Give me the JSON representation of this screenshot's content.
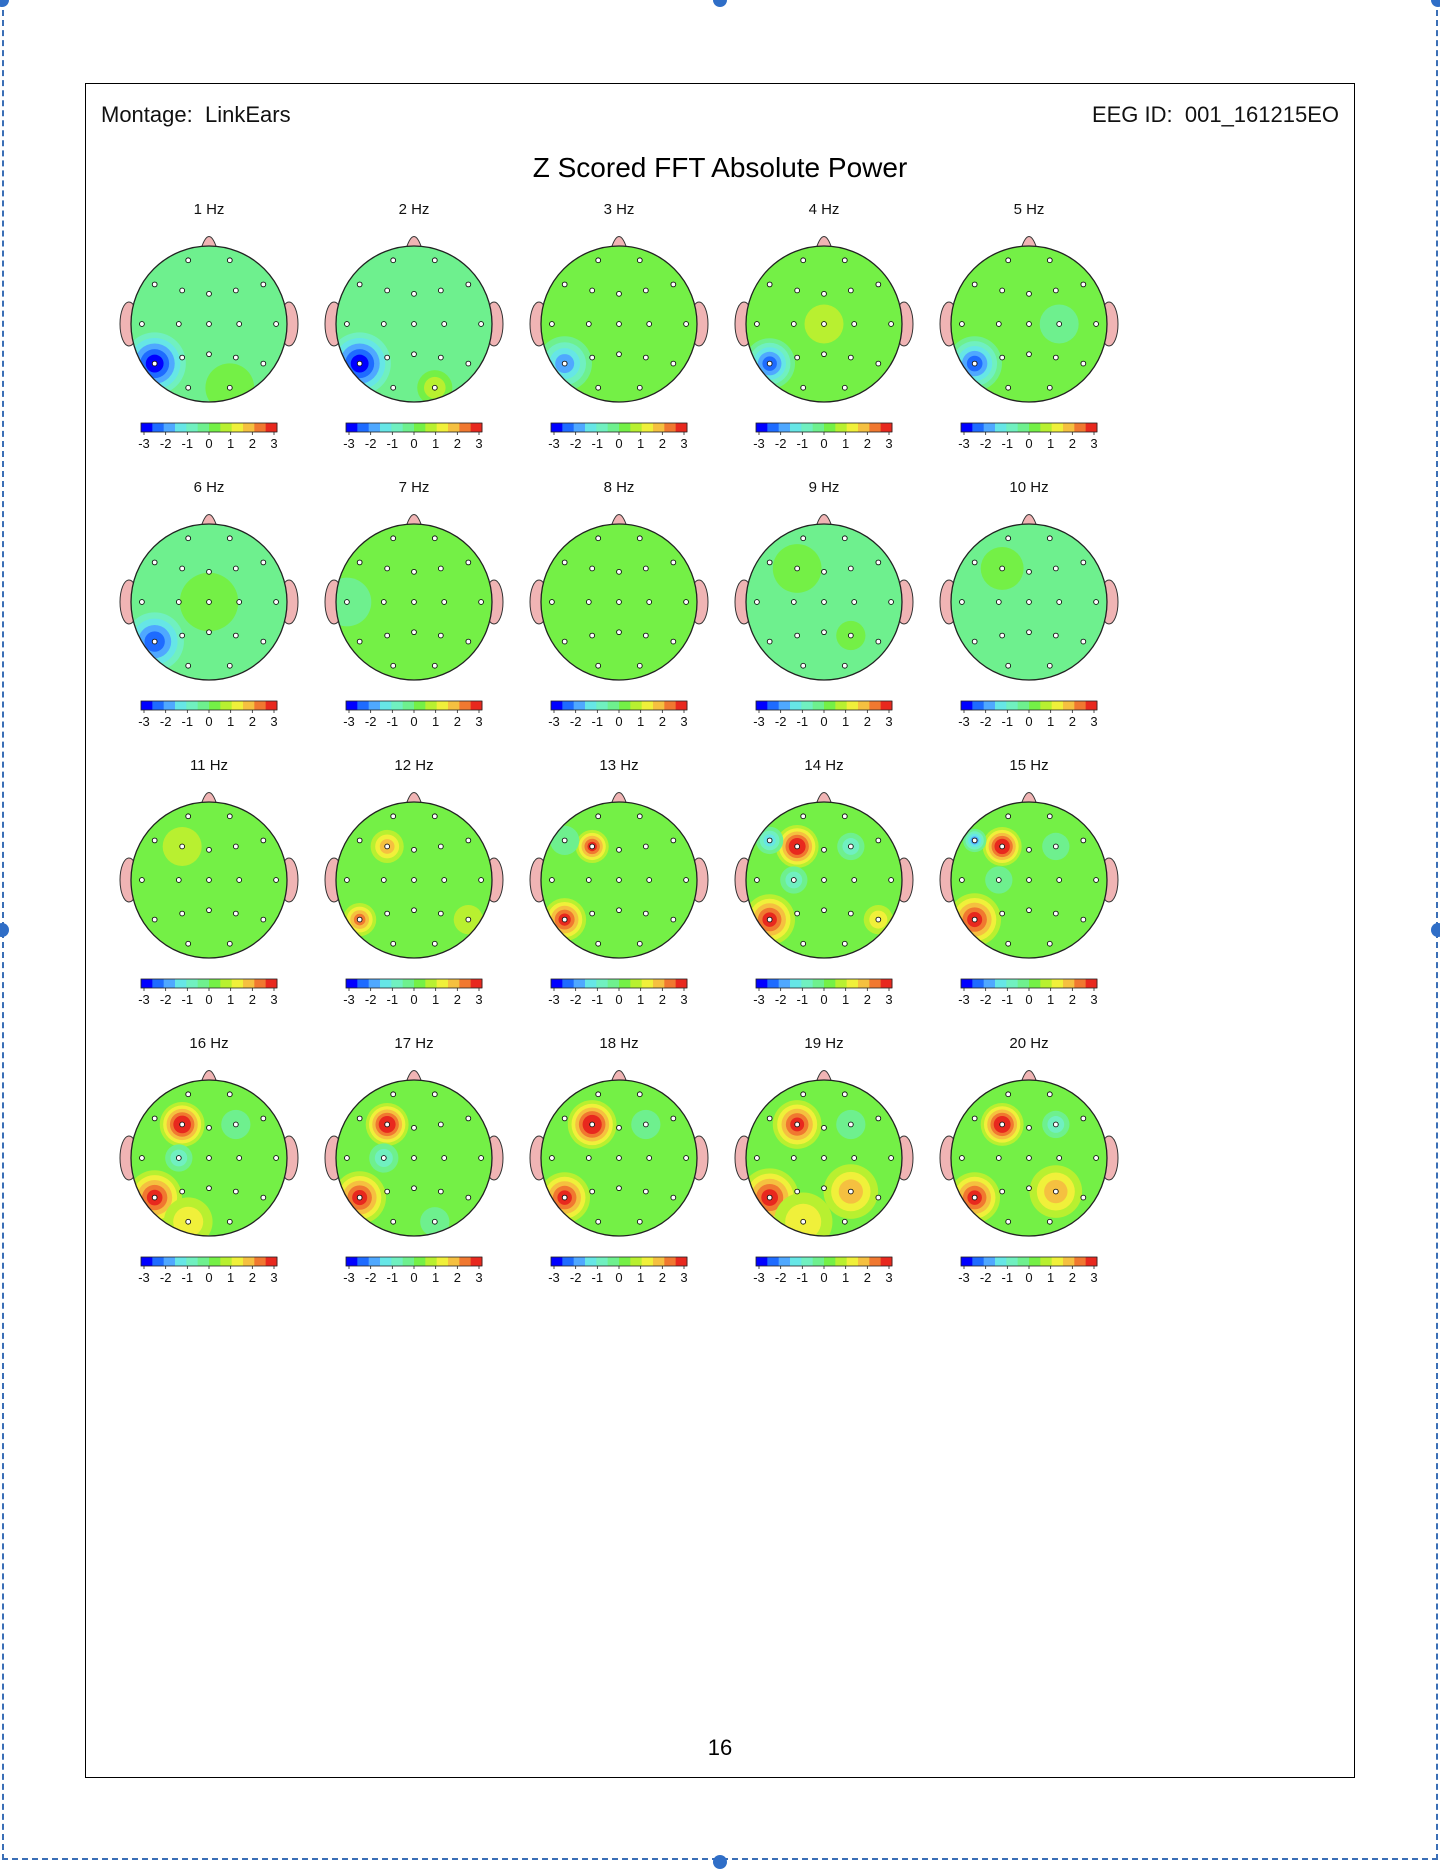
{
  "header": {
    "montage_label": "Montage:",
    "montage_value": "LinkEars",
    "eeg_label": "EEG ID:",
    "eeg_value": "001_161215EO"
  },
  "title": "Z Scored FFT Absolute Power",
  "page_number": "16",
  "colors": {
    "scale": [
      "#0000ff",
      "#1e6bff",
      "#4fa8ff",
      "#66e6e6",
      "#70f0c0",
      "#6ef08e",
      "#74f046",
      "#b8f030",
      "#f0f03a",
      "#f5c040",
      "#f07830",
      "#e8281e"
    ],
    "baseline": "#6ef08e",
    "ear": "#f0b4b4",
    "nose": "#f0b4b4"
  },
  "colorbar": {
    "ticks": [
      "-3",
      "-2",
      "-1",
      "0",
      "1",
      "2",
      "3"
    ],
    "min": -3,
    "max": 3
  },
  "maps": [
    {
      "label": "1 Hz",
      "base": -0.3,
      "blobs": [
        {
          "e": "T5",
          "v": -2.8,
          "r": 0.32
        },
        {
          "e": "O2",
          "v": 0.4,
          "r": 0.25
        },
        {
          "e": "Fp1",
          "v": -0.6,
          "r": 0.3
        }
      ]
    },
    {
      "label": "2 Hz",
      "base": -0.1,
      "blobs": [
        {
          "e": "T5",
          "v": -2.6,
          "r": 0.32
        },
        {
          "e": "O2",
          "v": 1.1,
          "r": 0.18
        },
        {
          "e": "Fp2",
          "v": -0.5,
          "r": 0.3
        }
      ]
    },
    {
      "label": "3 Hz",
      "base": 0.0,
      "blobs": [
        {
          "e": "T5",
          "v": -2.2,
          "r": 0.28
        },
        {
          "e": "C4",
          "v": 0.4,
          "r": 0.3
        },
        {
          "e": "F3",
          "v": -0.4,
          "r": 0.3
        }
      ]
    },
    {
      "label": "4 Hz",
      "base": 0.1,
      "blobs": [
        {
          "e": "T5",
          "v": -2.4,
          "r": 0.26
        },
        {
          "e": "Cz",
          "v": 0.6,
          "r": 0.2
        }
      ]
    },
    {
      "label": "5 Hz",
      "base": 0.2,
      "blobs": [
        {
          "e": "T5",
          "v": -2.4,
          "r": 0.28
        },
        {
          "e": "C4",
          "v": -0.3,
          "r": 0.2
        }
      ]
    },
    {
      "label": "6 Hz",
      "base": -0.1,
      "blobs": [
        {
          "e": "T5",
          "v": -2.4,
          "r": 0.3
        },
        {
          "e": "Cz",
          "v": 0.4,
          "r": 0.3
        }
      ]
    },
    {
      "label": "7 Hz",
      "base": 0.0,
      "blobs": [
        {
          "e": "Fz",
          "v": 0.4,
          "r": 0.35
        },
        {
          "e": "T3",
          "v": -0.5,
          "r": 0.25
        }
      ]
    },
    {
      "label": "8 Hz",
      "base": 0.1,
      "blobs": [
        {
          "e": "Fz",
          "v": 0.4,
          "r": 0.35
        },
        {
          "e": "O2",
          "v": 0.4,
          "r": 0.3
        }
      ]
    },
    {
      "label": "9 Hz",
      "base": -0.2,
      "blobs": [
        {
          "e": "F3",
          "v": 0.4,
          "r": 0.25
        },
        {
          "e": "P4",
          "v": 0.4,
          "r": 0.15
        }
      ]
    },
    {
      "label": "10 Hz",
      "base": -0.3,
      "blobs": [
        {
          "e": "F3",
          "v": 0.5,
          "r": 0.22
        },
        {
          "e": "Pz",
          "v": -0.2,
          "r": 0.3
        }
      ]
    },
    {
      "label": "11 Hz",
      "base": 0.1,
      "blobs": [
        {
          "e": "F3",
          "v": 0.6,
          "r": 0.2
        },
        {
          "e": "T4",
          "v": -0.3,
          "r": 0.25
        }
      ]
    },
    {
      "label": "12 Hz",
      "base": 0.2,
      "blobs": [
        {
          "e": "F3",
          "v": 2.0,
          "r": 0.17
        },
        {
          "e": "T5",
          "v": 2.3,
          "r": 0.17
        },
        {
          "e": "T6",
          "v": 1.0,
          "r": 0.15
        }
      ]
    },
    {
      "label": "13 Hz",
      "base": 0.2,
      "blobs": [
        {
          "e": "F3",
          "v": 3.0,
          "r": 0.17
        },
        {
          "e": "T5",
          "v": 2.8,
          "r": 0.22
        },
        {
          "e": "F7",
          "v": -0.7,
          "r": 0.15
        }
      ]
    },
    {
      "label": "14 Hz",
      "base": 0.2,
      "blobs": [
        {
          "e": "F3",
          "v": 3.2,
          "r": 0.22
        },
        {
          "e": "T5",
          "v": 2.9,
          "r": 0.26
        },
        {
          "e": "F7",
          "v": -1.6,
          "r": 0.14
        },
        {
          "e": "C3",
          "v": -0.8,
          "r": 0.14
        },
        {
          "e": "F4",
          "v": -0.9,
          "r": 0.14
        },
        {
          "e": "T6",
          "v": 1.4,
          "r": 0.15
        }
      ]
    },
    {
      "label": "15 Hz",
      "base": 0.2,
      "blobs": [
        {
          "e": "F3",
          "v": 3.2,
          "r": 0.2
        },
        {
          "e": "T5",
          "v": 2.9,
          "r": 0.27
        },
        {
          "e": "F7",
          "v": -1.8,
          "r": 0.12
        },
        {
          "e": "C3",
          "v": -0.7,
          "r": 0.14
        },
        {
          "e": "F4",
          "v": -0.6,
          "r": 0.14
        }
      ]
    },
    {
      "label": "16 Hz",
      "base": 0.2,
      "blobs": [
        {
          "e": "F3",
          "v": 3.2,
          "r": 0.23
        },
        {
          "e": "T5",
          "v": 2.9,
          "r": 0.28
        },
        {
          "e": "O1",
          "v": 1.5,
          "r": 0.25
        },
        {
          "e": "C3",
          "v": -0.8,
          "r": 0.14
        },
        {
          "e": "F4",
          "v": -0.6,
          "r": 0.15
        }
      ]
    },
    {
      "label": "17 Hz",
      "base": 0.2,
      "blobs": [
        {
          "e": "F3",
          "v": 3.2,
          "r": 0.22
        },
        {
          "e": "T5",
          "v": 2.9,
          "r": 0.27
        },
        {
          "e": "C3",
          "v": -1.0,
          "r": 0.15
        },
        {
          "e": "O2",
          "v": -0.4,
          "r": 0.15
        }
      ]
    },
    {
      "label": "18 Hz",
      "base": 0.2,
      "blobs": [
        {
          "e": "F3",
          "v": 3.2,
          "r": 0.25
        },
        {
          "e": "T5",
          "v": 2.9,
          "r": 0.26
        },
        {
          "e": "F4",
          "v": -0.5,
          "r": 0.15
        }
      ]
    },
    {
      "label": "19 Hz",
      "base": 0.3,
      "blobs": [
        {
          "e": "F3",
          "v": 3.2,
          "r": 0.25
        },
        {
          "e": "T5",
          "v": 2.9,
          "r": 0.3
        },
        {
          "e": "P4",
          "v": 2.0,
          "r": 0.28
        },
        {
          "e": "O1",
          "v": 1.4,
          "r": 0.3
        },
        {
          "e": "F4",
          "v": -0.6,
          "r": 0.15
        }
      ]
    },
    {
      "label": "20 Hz",
      "base": 0.2,
      "blobs": [
        {
          "e": "F3",
          "v": 3.2,
          "r": 0.22
        },
        {
          "e": "T5",
          "v": 2.8,
          "r": 0.26
        },
        {
          "e": "P4",
          "v": 1.7,
          "r": 0.27
        },
        {
          "e": "F4",
          "v": -0.8,
          "r": 0.14
        }
      ]
    }
  ]
}
